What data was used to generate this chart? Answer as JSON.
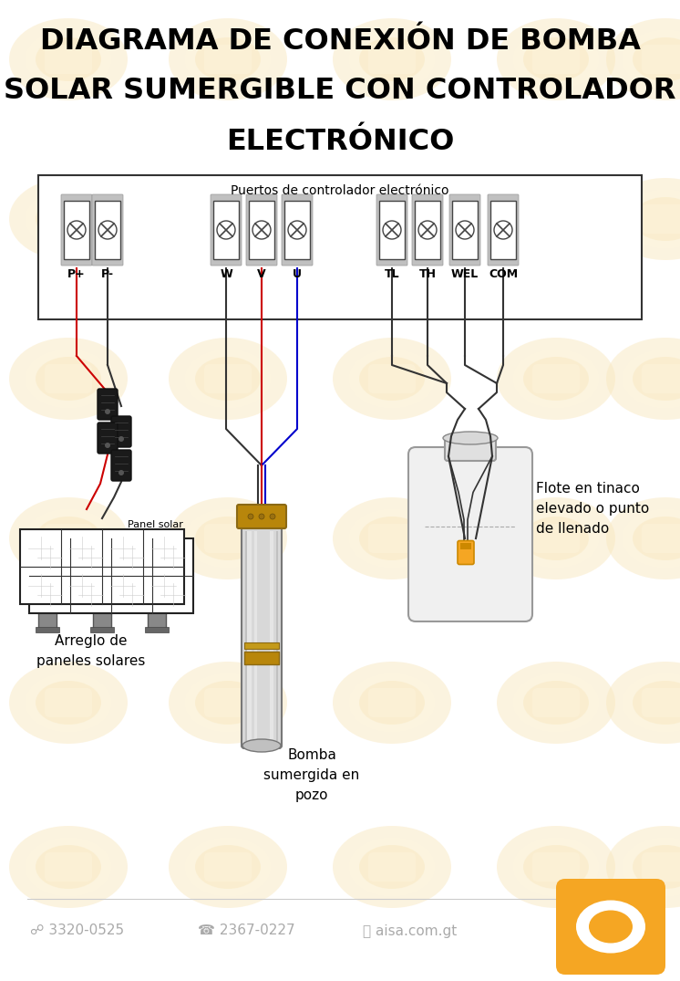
{
  "title_line1": "DIAGRAMA DE CONEXIÓN DE BOMBA",
  "title_line2": "SOLAR SUMERGIBLE CON CONTROLADOR",
  "title_line3": "ELECTRÓNICO",
  "bg_color": "#ffffff",
  "watermark_color": "#f5dfa0",
  "controller_label": "Puertos de controlador electrónico",
  "ports": [
    "P+",
    "P-",
    "W",
    "V",
    "U",
    "TL",
    "TH",
    "WEL",
    "COM"
  ],
  "label_solar": "Panel solar",
  "label_array": "Arreglo de\npaneles solares",
  "label_pump": "Bomba\nsumergida en\npozo",
  "label_float": "Flote en tinaco\nelevado o punto\nde llenado",
  "footer_phone1": "☍ 3320-0525",
  "footer_phone2": "☎ 2367-0227",
  "footer_web": "ⓘ aisa.com.gt",
  "accent_color": "#F5A623",
  "text_color": "#000000",
  "gray_color": "#888888",
  "red_color": "#cc0000",
  "blue_color": "#0000cc",
  "dark_color": "#222222"
}
